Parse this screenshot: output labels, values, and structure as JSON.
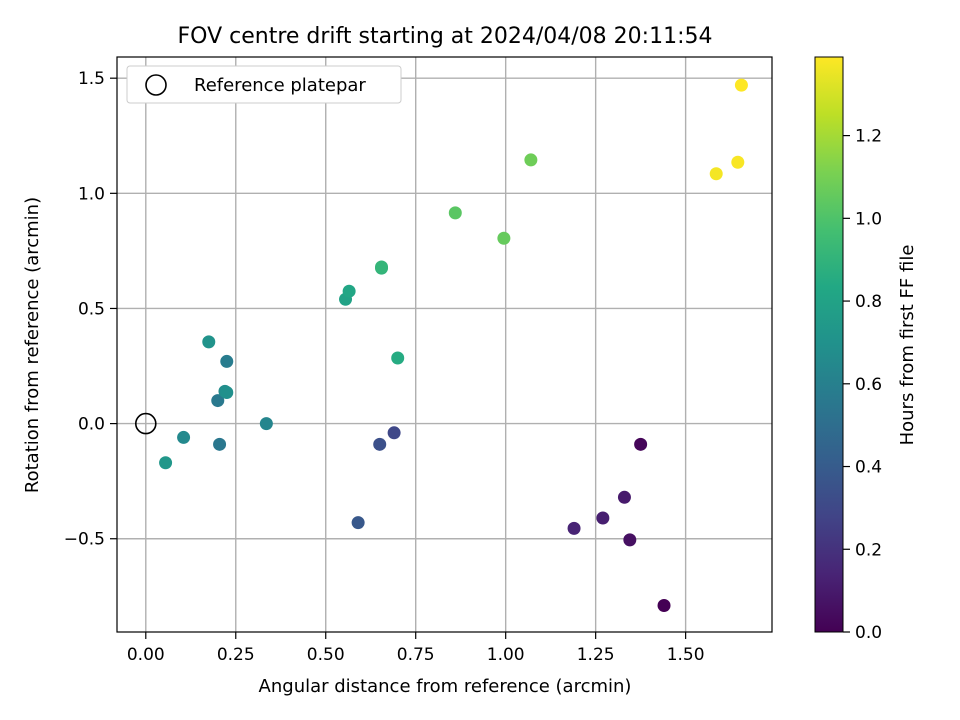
{
  "chart_data": {
    "type": "scatter",
    "title": "FOV centre drift starting at 2024/04/08 20:11:54",
    "xlabel": "Angular distance from reference (arcmin)",
    "ylabel": "Rotation from reference (arcmin)",
    "xlim": [
      -0.08,
      1.74
    ],
    "ylim": [
      -0.905,
      1.592
    ],
    "xticks": [
      0.0,
      0.25,
      0.5,
      0.75,
      1.0,
      1.25,
      1.5
    ],
    "xtick_labels": [
      "0.00",
      "0.25",
      "0.50",
      "0.75",
      "1.00",
      "1.25",
      "1.50"
    ],
    "yticks": [
      -0.5,
      0.0,
      0.5,
      1.0,
      1.5
    ],
    "ytick_labels": [
      "−0.5",
      "0.0",
      "0.5",
      "1.0",
      "1.5"
    ],
    "grid": true,
    "legend": {
      "placement": "top-left",
      "label": "Reference platepar"
    },
    "reference_point": {
      "x": 0.0,
      "y": 0.0
    },
    "colorbar": {
      "label": "Hours from first FF file",
      "colormap": "viridis",
      "range": [
        0.0,
        1.39
      ],
      "ticks": [
        0.0,
        0.2,
        0.4,
        0.6,
        0.8,
        1.0,
        1.2
      ],
      "tick_labels": [
        "0.0",
        "0.2",
        "0.4",
        "0.6",
        "0.8",
        "1.0",
        "1.2"
      ]
    },
    "points": [
      {
        "x": 1.44,
        "y": -0.79,
        "hours": 0.0
      },
      {
        "x": 1.375,
        "y": -0.09,
        "hours": 0.02
      },
      {
        "x": 1.345,
        "y": -0.505,
        "hours": 0.06
      },
      {
        "x": 1.33,
        "y": -0.32,
        "hours": 0.1
      },
      {
        "x": 1.27,
        "y": -0.41,
        "hours": 0.12
      },
      {
        "x": 1.19,
        "y": -0.455,
        "hours": 0.14
      },
      {
        "x": 0.69,
        "y": -0.04,
        "hours": 0.3
      },
      {
        "x": 0.65,
        "y": -0.09,
        "hours": 0.34
      },
      {
        "x": 0.59,
        "y": -0.43,
        "hours": 0.38
      },
      {
        "x": 0.205,
        "y": -0.09,
        "hours": 0.55
      },
      {
        "x": 0.2,
        "y": 0.1,
        "hours": 0.56
      },
      {
        "x": 0.225,
        "y": 0.27,
        "hours": 0.58
      },
      {
        "x": 0.335,
        "y": 0.0,
        "hours": 0.63
      },
      {
        "x": 0.105,
        "y": -0.06,
        "hours": 0.65
      },
      {
        "x": 0.22,
        "y": 0.14,
        "hours": 0.67
      },
      {
        "x": 0.225,
        "y": 0.135,
        "hours": 0.69
      },
      {
        "x": 0.175,
        "y": 0.355,
        "hours": 0.71
      },
      {
        "x": 0.055,
        "y": -0.17,
        "hours": 0.73
      },
      {
        "x": 0.555,
        "y": 0.54,
        "hours": 0.8
      },
      {
        "x": 0.565,
        "y": 0.575,
        "hours": 0.82
      },
      {
        "x": 0.7,
        "y": 0.285,
        "hours": 0.85
      },
      {
        "x": 0.655,
        "y": 0.675,
        "hours": 0.9
      },
      {
        "x": 0.655,
        "y": 0.68,
        "hours": 0.91
      },
      {
        "x": 0.86,
        "y": 0.915,
        "hours": 1.03
      },
      {
        "x": 0.995,
        "y": 0.805,
        "hours": 1.06
      },
      {
        "x": 1.07,
        "y": 1.145,
        "hours": 1.08
      },
      {
        "x": 1.585,
        "y": 1.085,
        "hours": 1.37
      },
      {
        "x": 1.645,
        "y": 1.135,
        "hours": 1.38
      },
      {
        "x": 1.655,
        "y": 1.47,
        "hours": 1.39
      }
    ]
  }
}
